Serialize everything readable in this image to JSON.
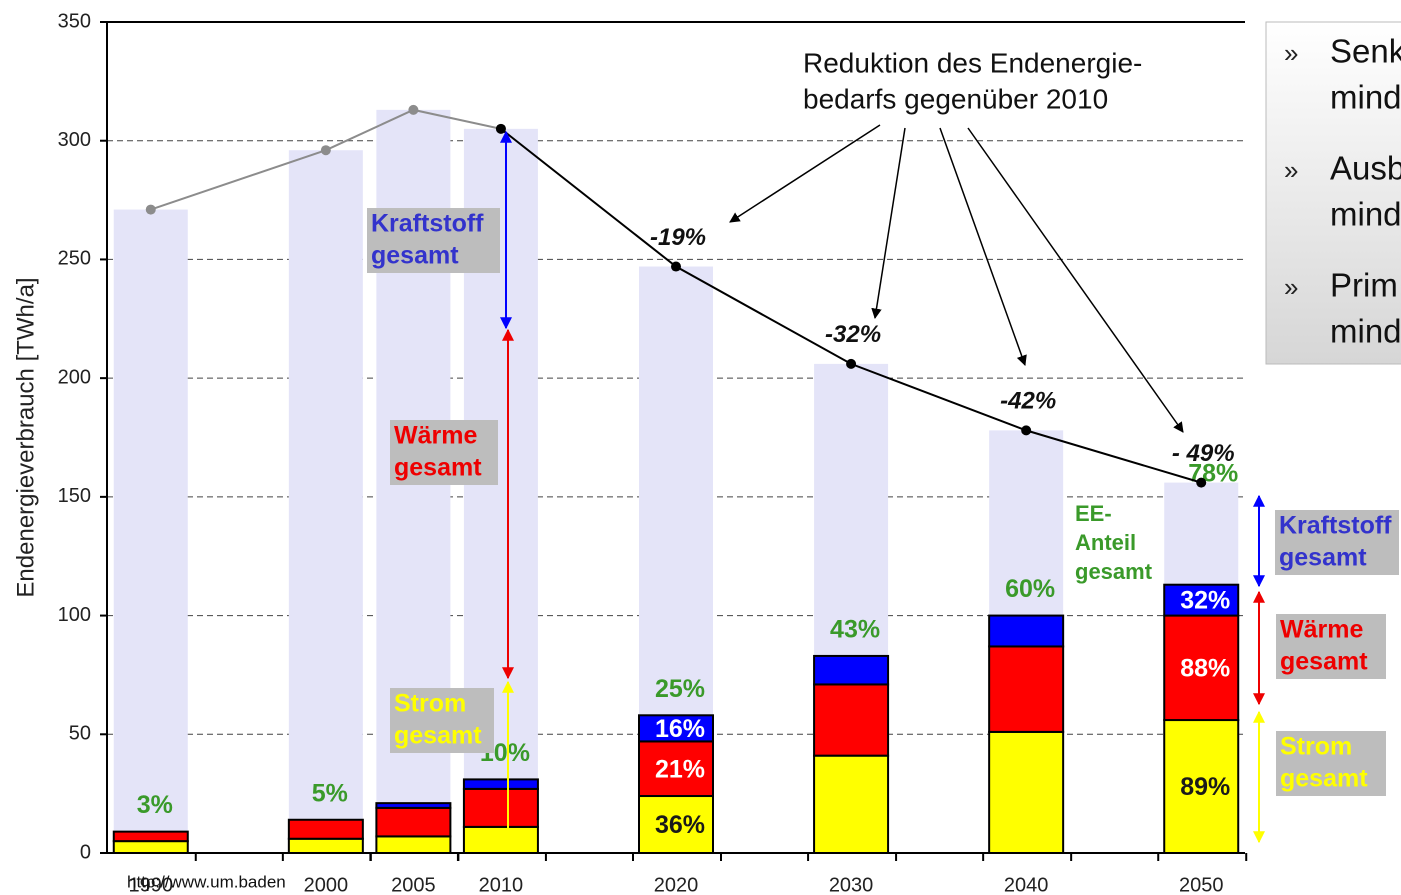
{
  "chart_data": {
    "type": "bar",
    "stacked": true,
    "y_label": "Endenergieverbrauch [TWh/a]",
    "x": [
      1990,
      2000,
      2005,
      2010,
      2020,
      2030,
      2040,
      2050
    ],
    "xlim": [
      1987.5,
      2052.5
    ],
    "ylim": [
      0,
      350
    ],
    "yticks": [
      0,
      50,
      100,
      150,
      200,
      250,
      300,
      350
    ],
    "grid": true,
    "total": {
      "color": "#e4e4f8",
      "line_colors": [
        "#8c8c8c",
        "#000000"
      ],
      "values": [
        271,
        296,
        313,
        305,
        247,
        206,
        178,
        156
      ],
      "reduction_labels": [
        null,
        null,
        null,
        null,
        "-19%",
        "-32%",
        "-42%",
        "- 49%"
      ]
    },
    "series": [
      {
        "name": "Strom",
        "color": "#ffff00",
        "label_color": "#1a1a1a",
        "values": [
          5,
          6,
          7,
          11,
          24,
          41,
          51,
          56
        ],
        "share_labels": [
          null,
          null,
          null,
          null,
          "36%",
          null,
          null,
          "89%"
        ]
      },
      {
        "name": "Wärme",
        "color": "#ff0000",
        "label_color": "#ffffff",
        "values": [
          4,
          8,
          12,
          16,
          23,
          30,
          36,
          44
        ],
        "share_labels": [
          null,
          null,
          null,
          null,
          "21%",
          null,
          null,
          "88%"
        ]
      },
      {
        "name": "Kraftstoff",
        "color": "#0000ff",
        "label_color": "#ffffff",
        "values": [
          0,
          0,
          2,
          4,
          11,
          12,
          13,
          13
        ],
        "share_labels": [
          null,
          null,
          null,
          null,
          "16%",
          null,
          null,
          "32%"
        ]
      }
    ],
    "ee_share_labels": [
      "3%",
      "5%",
      null,
      "10%",
      "25%",
      "43%",
      "60%",
      "78%"
    ],
    "ee_label": [
      "EE-",
      "Anteil",
      "gesamt"
    ],
    "reduction_note": [
      "Reduktion des Endenergie-",
      "bedarfs gegenüber 2010"
    ],
    "range_labels_2010": [
      {
        "lines": [
          "Kraftstoff",
          "gesamt"
        ],
        "color": "#3333cc"
      },
      {
        "lines": [
          "Wärme",
          "gesamt"
        ],
        "color": "#ee0000"
      },
      {
        "lines": [
          "Strom",
          "gesamt"
        ],
        "color": "#ffff00"
      }
    ],
    "range_labels_2050": [
      {
        "lines": [
          "Kraftstoff",
          "gesamt"
        ],
        "color": "#3333cc"
      },
      {
        "lines": [
          "Wärme",
          "gesamt"
        ],
        "color": "#ee0000"
      },
      {
        "lines": [
          "Strom",
          "gesamt"
        ],
        "color": "#ffff00"
      }
    ],
    "source": "http://www.um.baden"
  },
  "side_panel": {
    "bullet": "»",
    "items": [
      [
        "Senk",
        "mind"
      ],
      [
        "Ausb",
        "mind"
      ],
      [
        "Prim",
        "mind"
      ]
    ]
  }
}
